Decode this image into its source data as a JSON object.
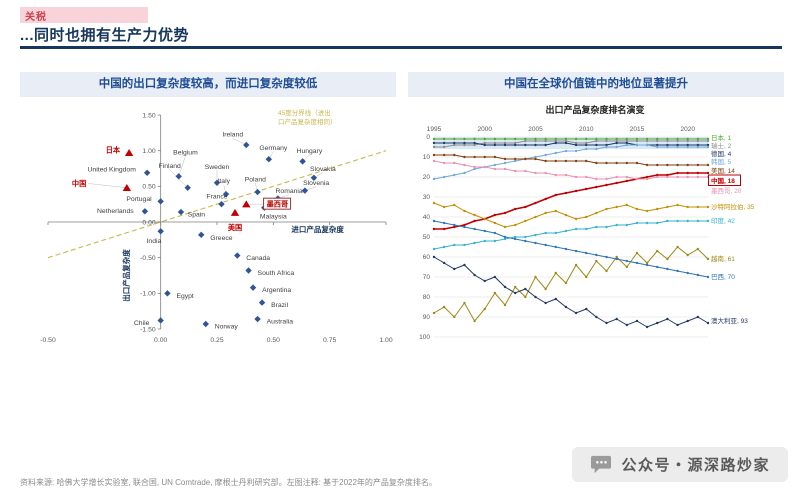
{
  "tag": {
    "label": "关税"
  },
  "title": {
    "text": "...同时也拥有生产力优势"
  },
  "panels": {
    "left": {
      "header": "中国的出口复杂度较高，而进口复杂度较低"
    },
    "right": {
      "header": "中国在全球价值链中的地位显著提升"
    }
  },
  "footer": {
    "source": "资料来源: 哈佛大学增长实验室, 联合国, UN Comtrade, 摩根士丹利研究部。左图注释: 基于2022年的产品复杂度排名。"
  },
  "watermark": {
    "label": "公众号・源深路炒家"
  },
  "colors": {
    "accent_navy": "#17365d",
    "header_bg": "#e9eef6",
    "header_text": "#1f4e97",
    "red": "#c00000",
    "scatter_blue": "#2f5597",
    "tag_bg": "#f8d3da",
    "tag_text": "#c9444f"
  },
  "chart_data": [
    {
      "type": "scatter",
      "xlabel": "进口产品复杂度",
      "ylabel": "出口产品复杂度",
      "xlim": [
        -0.5,
        1.0
      ],
      "ylim": [
        -1.5,
        1.5
      ],
      "x_ticks": [
        -0.5,
        0.0,
        0.25,
        0.5,
        0.75,
        1.0
      ],
      "x_tick_labels": [
        "-0.50",
        "0.00",
        "0.25",
        "0.50",
        "0.75",
        "1.00"
      ],
      "y_ticks": [
        1.5,
        1.0,
        0.5,
        0.0,
        -0.5,
        -1.0,
        -1.5
      ],
      "y_tick_labels": [
        "1.50",
        "1.00",
        "0.50",
        "0.00",
        "-0.50",
        "-1.00",
        "-1.50"
      ],
      "diagonal": {
        "label_line1": "45度分界线（进出",
        "label_line2": "口产品复杂度相同）",
        "from": [
          -0.5,
          -0.5
        ],
        "to": [
          1.0,
          1.0
        ],
        "color": "#c9b74a"
      },
      "points": [
        {
          "label": "Ireland",
          "x": 0.38,
          "y": 1.08,
          "lx": 0.32,
          "ly": 1.23,
          "anchor": "middle",
          "leader": true
        },
        {
          "label": "Germany",
          "x": 0.48,
          "y": 0.88,
          "lx": 0.5,
          "ly": 1.04,
          "anchor": "middle",
          "leader": true
        },
        {
          "label": "Hungary",
          "x": 0.63,
          "y": 0.85,
          "lx": 0.66,
          "ly": 1.0,
          "anchor": "middle",
          "leader": true
        },
        {
          "label": "Slovakia",
          "x": 0.68,
          "y": 0.62,
          "lx": 0.72,
          "ly": 0.75,
          "anchor": "middle",
          "leader": true
        },
        {
          "label": "Slovenia",
          "x": 0.64,
          "y": 0.44,
          "lx": 0.69,
          "ly": 0.55,
          "anchor": "middle",
          "leader": true
        },
        {
          "label": "Belgium",
          "x": 0.08,
          "y": 0.64,
          "lx": 0.11,
          "ly": 0.98,
          "anchor": "middle",
          "leader": true
        },
        {
          "label": "Finland",
          "x": 0.12,
          "y": 0.48,
          "lx": 0.04,
          "ly": 0.79,
          "anchor": "middle",
          "leader": true
        },
        {
          "label": "Sweden",
          "x": 0.25,
          "y": 0.55,
          "lx": 0.25,
          "ly": 0.78,
          "anchor": "middle",
          "leader": true
        },
        {
          "label": "Italy",
          "x": 0.29,
          "y": 0.39,
          "lx": 0.28,
          "ly": 0.58,
          "anchor": "middle",
          "leader": true
        },
        {
          "label": "Poland",
          "x": 0.43,
          "y": 0.42,
          "lx": 0.42,
          "ly": 0.6,
          "anchor": "middle",
          "leader": true
        },
        {
          "label": "Romania",
          "x": 0.52,
          "y": 0.33,
          "lx": 0.57,
          "ly": 0.44,
          "anchor": "middle",
          "leader": true
        },
        {
          "label": "Malaysia",
          "x": 0.46,
          "y": 0.2,
          "lx": 0.5,
          "ly": 0.08,
          "anchor": "middle",
          "leader": true
        },
        {
          "label": "France",
          "x": 0.27,
          "y": 0.25,
          "lx": 0.25,
          "ly": 0.36,
          "anchor": "middle"
        },
        {
          "label": "Portugal",
          "x": 0.0,
          "y": 0.29,
          "lx": -0.04,
          "ly": 0.33,
          "anchor": "end"
        },
        {
          "label": "Spain",
          "x": 0.09,
          "y": 0.14,
          "lx": 0.12,
          "ly": 0.11,
          "anchor": "start"
        },
        {
          "label": "Netherlands",
          "x": -0.07,
          "y": 0.15,
          "lx": -0.12,
          "ly": 0.16,
          "anchor": "end"
        },
        {
          "label": "United Kingdom",
          "x": -0.06,
          "y": 0.69,
          "lx": -0.11,
          "ly": 0.74,
          "anchor": "end"
        },
        {
          "label": "India",
          "x": 0.0,
          "y": -0.13,
          "lx": -0.03,
          "ly": -0.26,
          "anchor": "middle"
        },
        {
          "label": "Greece",
          "x": 0.18,
          "y": -0.18,
          "lx": 0.22,
          "ly": -0.22,
          "anchor": "start"
        },
        {
          "label": "Canada",
          "x": 0.34,
          "y": -0.47,
          "lx": 0.38,
          "ly": -0.5,
          "anchor": "start"
        },
        {
          "label": "South Africa",
          "x": 0.39,
          "y": -0.68,
          "lx": 0.43,
          "ly": -0.71,
          "anchor": "start"
        },
        {
          "label": "Argentina",
          "x": 0.41,
          "y": -0.92,
          "lx": 0.45,
          "ly": -0.95,
          "anchor": "start"
        },
        {
          "label": "Brazil",
          "x": 0.45,
          "y": -1.13,
          "lx": 0.49,
          "ly": -1.16,
          "anchor": "start"
        },
        {
          "label": "Egypt",
          "x": 0.03,
          "y": -1.0,
          "lx": 0.07,
          "ly": -1.03,
          "anchor": "start"
        },
        {
          "label": "Chile",
          "x": 0.0,
          "y": -1.38,
          "lx": -0.05,
          "ly": -1.41,
          "anchor": "end"
        },
        {
          "label": "Australia",
          "x": 0.43,
          "y": -1.36,
          "lx": 0.47,
          "ly": -1.39,
          "anchor": "start"
        },
        {
          "label": "Norway",
          "x": 0.2,
          "y": -1.43,
          "lx": 0.24,
          "ly": -1.46,
          "anchor": "start"
        },
        {
          "label": "日本",
          "x": -0.14,
          "y": 0.97,
          "lx": -0.18,
          "ly": 1.01,
          "anchor": "end",
          "style": "red"
        },
        {
          "label": "中国",
          "x": -0.15,
          "y": 0.48,
          "lx": -0.33,
          "ly": 0.54,
          "anchor": "end",
          "style": "red",
          "leader": true
        },
        {
          "label": "美国",
          "x": 0.33,
          "y": 0.13,
          "lx": 0.33,
          "ly": -0.08,
          "anchor": "middle",
          "style": "red"
        },
        {
          "label": "墨西哥",
          "x": 0.38,
          "y": 0.25,
          "lx": 0.47,
          "ly": 0.25,
          "anchor": "start",
          "style": "red",
          "box": true,
          "leader": true
        }
      ]
    },
    {
      "type": "line",
      "title": "出口产品复杂度排名演变",
      "x": [
        1995,
        1996,
        1997,
        1998,
        1999,
        2000,
        2001,
        2002,
        2003,
        2004,
        2005,
        2006,
        2007,
        2008,
        2009,
        2010,
        2011,
        2012,
        2013,
        2014,
        2015,
        2016,
        2017,
        2018,
        2019,
        2020,
        2021,
        2022
      ],
      "x_ticks": [
        1995,
        2000,
        2005,
        2010,
        2015,
        2020
      ],
      "y_ticks": [
        0,
        10,
        20,
        30,
        40,
        50,
        60,
        70,
        80,
        90,
        100
      ],
      "ylim": [
        0,
        100
      ],
      "y_axis_inverted_rank": true,
      "highlight_band": {
        "from": 0,
        "to": 6,
        "color": "#d9e9f6"
      },
      "series": [
        {
          "name": "日本",
          "label": "日本, 1",
          "color": "#4ea72e",
          "label_pos": 0.5,
          "values": [
            1,
            1,
            1,
            1,
            1,
            1,
            1,
            1,
            1,
            1,
            1,
            1,
            1,
            1,
            1,
            1,
            1,
            1,
            1,
            1,
            1,
            1,
            1,
            1,
            1,
            1,
            1,
            1
          ]
        },
        {
          "name": "瑞士",
          "label": "瑞士, 2",
          "color": "#8c8c8c",
          "label_pos": 4.5,
          "values": [
            5,
            5,
            4,
            4,
            4,
            3,
            3,
            3,
            3,
            2,
            2,
            2,
            2,
            2,
            3,
            3,
            2,
            2,
            2,
            2,
            2,
            2,
            2,
            2,
            2,
            2,
            2,
            2
          ]
        },
        {
          "name": "德国",
          "label": "德国, 4",
          "color": "#1f3864",
          "label_pos": 8.5,
          "values": [
            3,
            3,
            3,
            3,
            3,
            4,
            4,
            4,
            4,
            4,
            4,
            4,
            3,
            3,
            4,
            4,
            4,
            4,
            3,
            3,
            4,
            4,
            4,
            4,
            4,
            4,
            4,
            4
          ]
        },
        {
          "name": "韩国",
          "label": "韩国, 5",
          "color": "#6fa8dc",
          "label_pos": 12.5,
          "values": [
            21,
            20,
            19,
            18,
            16,
            15,
            14,
            13,
            12,
            11,
            10,
            9,
            8,
            7,
            7,
            6,
            6,
            5,
            5,
            4,
            4,
            4,
            5,
            5,
            5,
            5,
            5,
            5
          ]
        },
        {
          "name": "美国",
          "label": "美国, 14",
          "color": "#843c0c",
          "label_pos": 17,
          "values": [
            9,
            9,
            9,
            10,
            10,
            10,
            10,
            11,
            11,
            11,
            11,
            12,
            12,
            12,
            12,
            12,
            13,
            13,
            13,
            13,
            13,
            14,
            14,
            14,
            14,
            14,
            14,
            14
          ]
        },
        {
          "name": "中国",
          "label": "中国, 18",
          "color": "#c00000",
          "label_pos": 22,
          "boxed": true,
          "emphasis": true,
          "values": [
            46,
            46,
            45,
            44,
            42,
            41,
            39,
            38,
            36,
            35,
            33,
            31,
            29,
            28,
            27,
            26,
            25,
            24,
            23,
            22,
            21,
            20,
            19,
            19,
            18,
            18,
            18,
            18
          ]
        },
        {
          "name": "墨西哥",
          "label": "墨西哥, 20",
          "color": "#e891b1",
          "label_pos": 27,
          "values": [
            12,
            13,
            13,
            14,
            15,
            15,
            16,
            16,
            17,
            17,
            18,
            18,
            19,
            19,
            20,
            20,
            21,
            21,
            20,
            20,
            21,
            21,
            20,
            20,
            20,
            20,
            20,
            20
          ]
        },
        {
          "name": "沙特阿拉伯",
          "label": "沙特阿拉伯, 35",
          "color": "#bf9000",
          "label_pos": 35,
          "values": [
            33,
            35,
            34,
            37,
            39,
            41,
            43,
            45,
            44,
            42,
            40,
            38,
            37,
            39,
            41,
            40,
            38,
            36,
            35,
            34,
            36,
            37,
            36,
            35,
            34,
            35,
            35,
            35
          ]
        },
        {
          "name": "印度",
          "label": "印度, 42",
          "color": "#33b3cc",
          "label_pos": 42,
          "values": [
            56,
            55,
            54,
            54,
            53,
            52,
            52,
            51,
            50,
            50,
            49,
            48,
            48,
            47,
            46,
            46,
            45,
            45,
            44,
            44,
            43,
            43,
            43,
            42,
            42,
            42,
            42,
            42
          ]
        },
        {
          "name": "越南",
          "label": "越南, 61",
          "color": "#9c8a16",
          "label_pos": 61,
          "values": [
            88,
            85,
            90,
            83,
            92,
            86,
            78,
            84,
            75,
            80,
            70,
            76,
            68,
            73,
            64,
            70,
            62,
            67,
            60,
            65,
            58,
            63,
            57,
            61,
            55,
            59,
            56,
            61
          ]
        },
        {
          "name": "巴西",
          "label": "巴西, 70",
          "color": "#2e75b6",
          "label_pos": 70,
          "values": [
            42,
            43,
            44,
            45,
            46,
            47,
            48,
            50,
            51,
            52,
            53,
            54,
            55,
            56,
            57,
            58,
            59,
            60,
            61,
            62,
            63,
            64,
            65,
            66,
            67,
            68,
            69,
            70
          ]
        },
        {
          "name": "澳大利亚",
          "label": "澳大利亚, 93",
          "color": "#203864",
          "label_pos": 92,
          "values": [
            60,
            63,
            66,
            64,
            69,
            72,
            70,
            75,
            78,
            76,
            80,
            83,
            81,
            85,
            88,
            86,
            90,
            93,
            91,
            94,
            92,
            95,
            93,
            91,
            94,
            92,
            90,
            93
          ]
        }
      ]
    }
  ]
}
